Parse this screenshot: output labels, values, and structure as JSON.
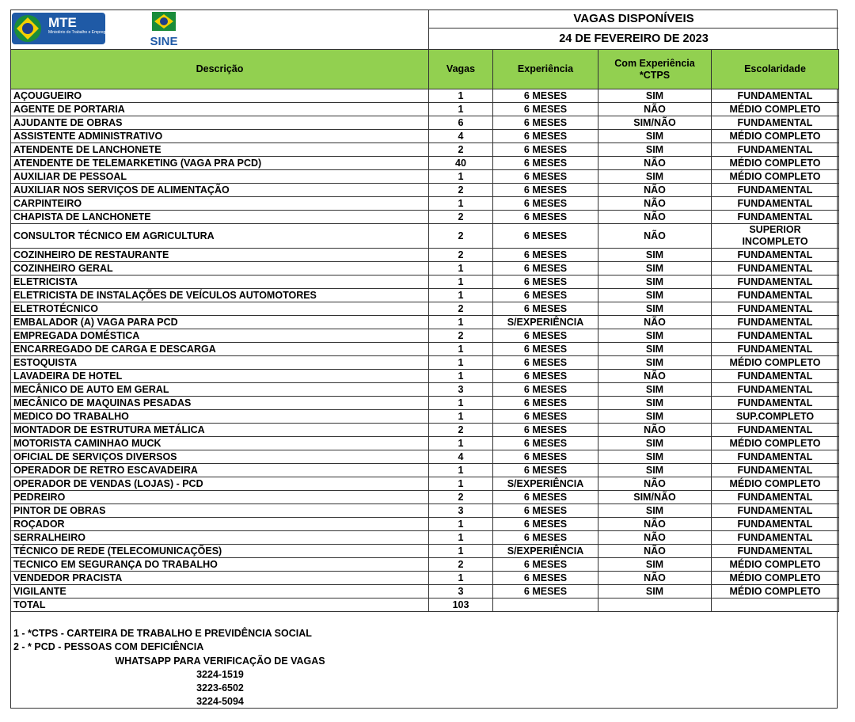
{
  "header": {
    "logo_mte": {
      "acronym": "MTE",
      "text": "Ministério do\nTrabalho e Emprego"
    },
    "logo_sine": "SINE",
    "title": "VAGAS DISPONÍVEIS",
    "date": "24 DE FEVEREIRO DE 2023"
  },
  "table": {
    "columns": [
      "Descrição",
      "Vagas",
      "Experiência",
      "Com Experiência\n*CTPS",
      "Escolaridade"
    ],
    "rows": [
      [
        "AÇOUGUEIRO",
        1,
        "6 MESES",
        "SIM",
        "FUNDAMENTAL"
      ],
      [
        "AGENTE DE PORTARIA",
        1,
        "6 MESES",
        "NÃO",
        "MÉDIO COMPLETO"
      ],
      [
        "AJUDANTE DE OBRAS",
        6,
        "6 MESES",
        "SIM/NÃO",
        "FUNDAMENTAL"
      ],
      [
        "ASSISTENTE ADMINISTRATIVO",
        4,
        "6 MESES",
        "SIM",
        "MÉDIO COMPLETO"
      ],
      [
        "ATENDENTE DE LANCHONETE",
        2,
        "6 MESES",
        "SIM",
        "FUNDAMENTAL"
      ],
      [
        "ATENDENTE DE TELEMARKETING (VAGA PRA PCD)",
        40,
        "6 MESES",
        "NÃO",
        "MÉDIO COMPLETO"
      ],
      [
        "AUXILIAR DE PESSOAL",
        1,
        "6 MESES",
        "SIM",
        "MÉDIO COMPLETO"
      ],
      [
        "AUXILIAR NOS SERVIÇOS DE ALIMENTAÇÃO",
        2,
        "6 MESES",
        "NÃO",
        "FUNDAMENTAL"
      ],
      [
        "CARPINTEIRO",
        1,
        "6 MESES",
        "NÃO",
        "FUNDAMENTAL"
      ],
      [
        "CHAPISTA DE LANCHONETE",
        2,
        "6 MESES",
        "NÃO",
        "FUNDAMENTAL"
      ],
      [
        "CONSULTOR TÉCNICO EM AGRICULTURA",
        2,
        "6 MESES",
        "NÃO",
        "SUPERIOR\nINCOMPLETO"
      ],
      [
        "COZINHEIRO DE RESTAURANTE",
        2,
        "6 MESES",
        "SIM",
        "FUNDAMENTAL"
      ],
      [
        "COZINHEIRO GERAL",
        1,
        "6 MESES",
        "SIM",
        "FUNDAMENTAL"
      ],
      [
        "ELETRICISTA",
        1,
        "6 MESES",
        "SIM",
        "FUNDAMENTAL"
      ],
      [
        "ELETRICISTA DE INSTALAÇÕES DE VEÍCULOS AUTOMOTORES",
        1,
        "6 MESES",
        "SIM",
        "FUNDAMENTAL"
      ],
      [
        "ELETROTÉCNICO",
        2,
        "6 MESES",
        "SIM",
        "FUNDAMENTAL"
      ],
      [
        "EMBALADOR (A)  VAGA PARA PCD",
        1,
        "S/EXPERIÊNCIA",
        "NÃO",
        "FUNDAMENTAL"
      ],
      [
        "EMPREGADA DOMÉSTICA",
        2,
        "6 MESES",
        "SIM",
        "FUNDAMENTAL"
      ],
      [
        "ENCARREGADO DE CARGA E DESCARGA",
        1,
        "6 MESES",
        "SIM",
        "FUNDAMENTAL"
      ],
      [
        "ESTOQUISTA",
        1,
        "6 MESES",
        "SIM",
        "MÉDIO COMPLETO"
      ],
      [
        "LAVADEIRA DE HOTEL",
        1,
        "6 MESES",
        "NÃO",
        "FUNDAMENTAL"
      ],
      [
        "MECÂNICO DE AUTO EM GERAL",
        3,
        "6 MESES",
        "SIM",
        "FUNDAMENTAL"
      ],
      [
        "MECÂNICO DE MAQUINAS PESADAS",
        1,
        "6 MESES",
        "SIM",
        "FUNDAMENTAL"
      ],
      [
        "MEDICO DO TRABALHO",
        1,
        "6 MESES",
        "SIM",
        "SUP.COMPLETO"
      ],
      [
        "MONTADOR DE ESTRUTURA METÁLICA",
        2,
        "6 MESES",
        "NÃO",
        "FUNDAMENTAL"
      ],
      [
        "MOTORISTA CAMINHAO MUCK",
        1,
        "6 MESES",
        "SIM",
        "MÉDIO COMPLETO"
      ],
      [
        "OFICIAL DE SERVIÇOS DIVERSOS",
        4,
        "6 MESES",
        "SIM",
        "FUNDAMENTAL"
      ],
      [
        "OPERADOR DE RETRO ESCAVADEIRA",
        1,
        "6 MESES",
        "SIM",
        "FUNDAMENTAL"
      ],
      [
        "OPERADOR DE VENDAS (LOJAS) - PCD",
        1,
        "S/EXPERIÊNCIA",
        "NÃO",
        "MÉDIO COMPLETO"
      ],
      [
        "PEDREIRO",
        2,
        "6 MESES",
        "SIM/NÃO",
        "FUNDAMENTAL"
      ],
      [
        "PINTOR DE OBRAS",
        3,
        "6 MESES",
        "SIM",
        "FUNDAMENTAL"
      ],
      [
        "ROÇADOR",
        1,
        "6 MESES",
        "NÃO",
        "FUNDAMENTAL"
      ],
      [
        "SERRALHEIRO",
        1,
        "6 MESES",
        "NÃO",
        "FUNDAMENTAL"
      ],
      [
        "TÉCNICO DE REDE (TELECOMUNICAÇÕES)",
        1,
        "S/EXPERIÊNCIA",
        "NÃO",
        "FUNDAMENTAL"
      ],
      [
        "TECNICO EM SEGURANÇA DO TRABALHO",
        2,
        "6 MESES",
        "SIM",
        "MÉDIO COMPLETO"
      ],
      [
        "VENDEDOR PRACISTA",
        1,
        "6 MESES",
        "NÃO",
        "MÉDIO COMPLETO"
      ],
      [
        "VIGILANTE",
        3,
        "6 MESES",
        "SIM",
        "MÉDIO COMPLETO"
      ]
    ],
    "total": {
      "label": "TOTAL",
      "value": 103
    }
  },
  "footer": {
    "notes": [
      "1 - *CTPS - CARTEIRA DE TRABALHO E PREVIDÊNCIA SOCIAL",
      "2 - * PCD - PESSOAS COM DEFICIÊNCIA"
    ],
    "whatsapp_label": "WHATSAPP PARA VERIFICAÇÃO DE VAGAS",
    "phones": [
      "3224-1519",
      "3223-6502",
      "3224-5094"
    ]
  }
}
